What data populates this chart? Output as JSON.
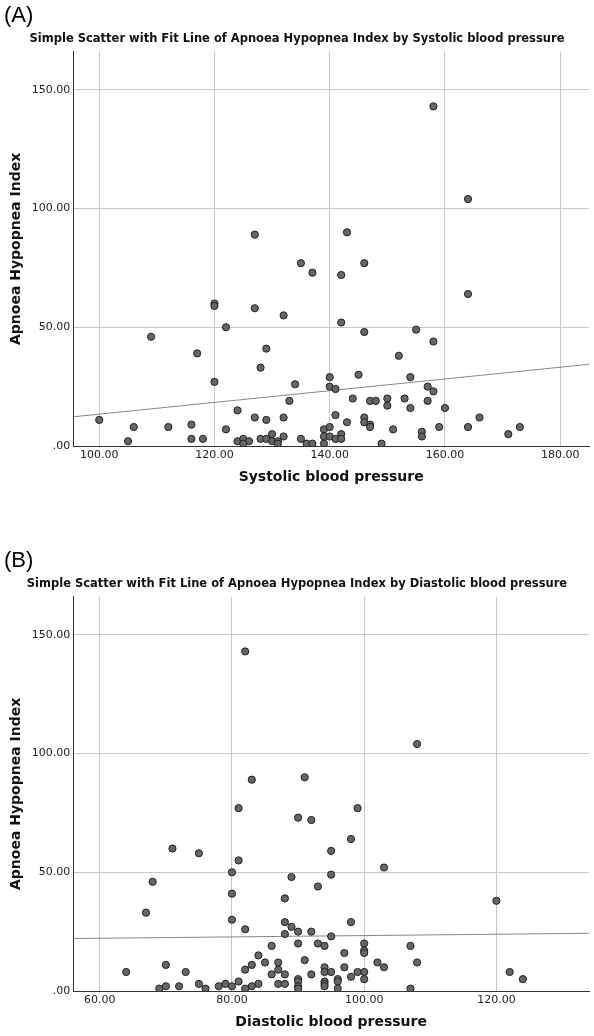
{
  "chart_data": [
    {
      "type": "scatter",
      "title": "Simple Scatter with Fit Line of Apnoea Hypopnea Index by Systolic blood pressure",
      "xlabel": "Systolic blood pressure",
      "ylabel": "Apnoea Hypopnea Index",
      "annotations": [
        "(A)"
      ],
      "xlim": [
        95.5,
        185
      ],
      "ylim": [
        0,
        166
      ],
      "xticks": [
        {
          "value": 100,
          "label": "100.00"
        },
        {
          "value": 120,
          "label": "120.00"
        },
        {
          "value": 140,
          "label": "140.00"
        },
        {
          "value": 160,
          "label": "160.00"
        },
        {
          "value": 180,
          "label": "180.00"
        }
      ],
      "yticks": [
        {
          "value": 0,
          "label": ".00"
        },
        {
          "value": 50,
          "label": "50.00"
        },
        {
          "value": 100,
          "label": "100.00"
        },
        {
          "value": 150,
          "label": "150.00"
        }
      ],
      "grid": true,
      "series": [
        {
          "type": "scatter",
          "marker": "circle",
          "color": "#666666",
          "x": [
            158,
            164,
            127,
            143,
            135,
            137,
            146,
            142,
            164,
            120,
            120,
            127,
            132,
            142,
            122,
            155,
            146,
            109,
            158,
            129,
            117,
            152,
            128,
            145,
            140,
            154,
            120,
            134,
            140,
            141,
            157,
            158,
            144,
            150,
            153,
            133,
            147,
            148,
            157,
            150,
            154,
            160,
            124,
            141,
            100,
            127,
            129,
            132,
            146,
            166,
            146,
            147,
            147,
            143,
            106,
            112,
            116,
            122,
            139,
            140,
            151,
            159,
            164,
            173,
            156,
            156,
            171,
            142,
            130,
            116,
            118,
            105,
            128,
            129,
            130,
            131,
            132,
            124,
            125,
            126,
            125,
            131,
            135,
            136,
            137,
            139,
            139,
            140,
            141,
            142,
            149
          ],
          "values": [
            143,
            104,
            89,
            90,
            77,
            73,
            77,
            72,
            64,
            60,
            59,
            58,
            55,
            52,
            50,
            49,
            48,
            46,
            44,
            41,
            39,
            38,
            33,
            30,
            29,
            29,
            27,
            26,
            25,
            24,
            25,
            23,
            20,
            20,
            20,
            19,
            19,
            19,
            19,
            17,
            16,
            16,
            15,
            13,
            11,
            12,
            11,
            12,
            12,
            12,
            10,
            9,
            8,
            10,
            8,
            8,
            9,
            7,
            7,
            8,
            7,
            8,
            8,
            8,
            6,
            4,
            5,
            5,
            5,
            3,
            3,
            2,
            3,
            3,
            2,
            2,
            4,
            2,
            3,
            2,
            1,
            1,
            3,
            1,
            1,
            1,
            4,
            4,
            3,
            3,
            1
          ]
        },
        {
          "type": "line",
          "marker": "none",
          "color": "#888888",
          "x": [
            95.5,
            185
          ],
          "values": [
            12.3,
            34.4
          ]
        }
      ]
    },
    {
      "type": "scatter",
      "title": "Simple Scatter with Fit Line of Apnoea Hypopnea Index by Diastolic blood pressure",
      "xlabel": "Diastolic blood pressure",
      "ylabel": "Apnoea Hypopnea Index",
      "annotations": [
        "(B)"
      ],
      "xlim": [
        56,
        134
      ],
      "ylim": [
        0,
        166
      ],
      "xticks": [
        {
          "value": 60,
          "label": "60.00"
        },
        {
          "value": 80,
          "label": "80.00"
        },
        {
          "value": 100,
          "label": "100.00"
        },
        {
          "value": 120,
          "label": "120.00"
        }
      ],
      "yticks": [
        {
          "value": 0,
          "label": ".00"
        },
        {
          "value": 50,
          "label": "50.00"
        },
        {
          "value": 100,
          "label": "100.00"
        },
        {
          "value": 150,
          "label": "150.00"
        }
      ],
      "grid": true,
      "series": [
        {
          "type": "scatter",
          "marker": "circle",
          "color": "#666666",
          "x": [
            82,
            108,
            83,
            91,
            81,
            99,
            90,
            92,
            98,
            71,
            75,
            95,
            81,
            103,
            80,
            95,
            89,
            68,
            93,
            80,
            88,
            120,
            67,
            80,
            98,
            88,
            89,
            82,
            90,
            92,
            88,
            95,
            86,
            90,
            93,
            94,
            100,
            107,
            100,
            100,
            97,
            84,
            91,
            85,
            87,
            102,
            108,
            70,
            83,
            87,
            82,
            94,
            97,
            103,
            64,
            73,
            86,
            88,
            92,
            94,
            95,
            99,
            100,
            122,
            98,
            90,
            96,
            100,
            124,
            90,
            94,
            96,
            81,
            75,
            84,
            87,
            88,
            94,
            70,
            72,
            78,
            79,
            80,
            83,
            90,
            94,
            69,
            76,
            82,
            90,
            96,
            107
          ],
          "values": [
            143,
            104,
            89,
            90,
            77,
            77,
            73,
            72,
            64,
            60,
            58,
            59,
            55,
            52,
            50,
            49,
            48,
            46,
            44,
            41,
            39,
            38,
            33,
            30,
            29,
            29,
            27,
            26,
            25,
            25,
            24,
            23,
            19,
            20,
            20,
            19,
            20,
            19,
            17,
            16,
            16,
            15,
            13,
            12,
            12,
            12,
            12,
            11,
            11,
            9,
            9,
            10,
            10,
            10,
            8,
            8,
            7,
            7,
            7,
            8,
            8,
            8,
            8,
            8,
            6,
            5,
            5,
            5,
            5,
            4,
            4,
            4,
            4,
            3,
            3,
            3,
            3,
            3,
            2,
            2,
            2,
            3,
            2,
            2,
            2,
            2,
            1,
            1,
            1,
            1,
            1,
            1
          ]
        },
        {
          "type": "line",
          "marker": "none",
          "color": "#888888",
          "x": [
            56,
            134
          ],
          "values": [
            22.1,
            24.3
          ]
        }
      ]
    }
  ]
}
